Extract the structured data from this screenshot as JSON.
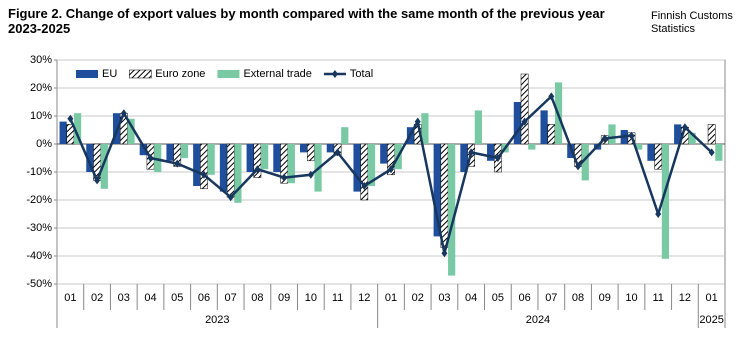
{
  "chart_data": {
    "type": "bar",
    "title": "Figure 2. Change of export values by month compared with the same month of the previous year 2023-2025",
    "source": "Finnish Customs Statistics",
    "categories": [
      "01",
      "02",
      "03",
      "04",
      "05",
      "06",
      "07",
      "08",
      "09",
      "10",
      "11",
      "12",
      "01",
      "02",
      "03",
      "04",
      "05",
      "06",
      "07",
      "08",
      "09",
      "10",
      "11",
      "12",
      "01"
    ],
    "years": [
      "2023",
      "2024",
      "2025"
    ],
    "ylim": [
      -50,
      30
    ],
    "yticks": [
      {
        "value": 30,
        "label": "30%"
      },
      {
        "value": 20,
        "label": "20%"
      },
      {
        "value": 10,
        "label": "10%"
      },
      {
        "value": 0,
        "label": "0%"
      },
      {
        "value": -10,
        "label": "-10%"
      },
      {
        "value": -20,
        "label": "-20%"
      },
      {
        "value": -30,
        "label": "-30%"
      },
      {
        "value": -40,
        "label": "-40%"
      },
      {
        "value": -50,
        "label": "-50%"
      }
    ],
    "grid": true,
    "series": [
      {
        "name": "EU",
        "type": "bar",
        "color": "#1f4e9c",
        "values": [
          8,
          -10,
          11,
          -4,
          -6,
          -15,
          -17,
          -10,
          -10,
          -3,
          -3,
          -17,
          -7,
          6,
          -33,
          -10,
          -6,
          15,
          12,
          -5,
          -2,
          5,
          -6,
          7,
          0
        ]
      },
      {
        "name": "Euro zone",
        "type": "bar",
        "pattern": "hatch",
        "color": "#000000",
        "values": [
          7,
          -13,
          11,
          -9,
          -8,
          -16,
          -19,
          -12,
          -14,
          -6,
          -4,
          -20,
          -11,
          7,
          -37,
          -8,
          -10,
          25,
          7,
          -8,
          3,
          4,
          -9,
          6,
          7
        ]
      },
      {
        "name": "External trade",
        "type": "bar",
        "color": "#79caa4",
        "values": [
          11,
          -16,
          9,
          -10,
          -5,
          -11,
          -21,
          -9,
          -14,
          -17,
          6,
          -15,
          -9,
          11,
          -47,
          12,
          -3,
          -2,
          22,
          -13,
          7,
          -2,
          -41,
          4,
          -6
        ]
      },
      {
        "name": "Total",
        "type": "line",
        "color": "#17375e",
        "values": [
          9,
          -13,
          11,
          -5,
          -7,
          -11,
          -19,
          -9,
          -12,
          -11,
          -3,
          -15,
          -9,
          8,
          -39,
          -3,
          -5,
          8,
          17,
          -8,
          2,
          3,
          -25,
          6,
          -3
        ]
      }
    ]
  }
}
